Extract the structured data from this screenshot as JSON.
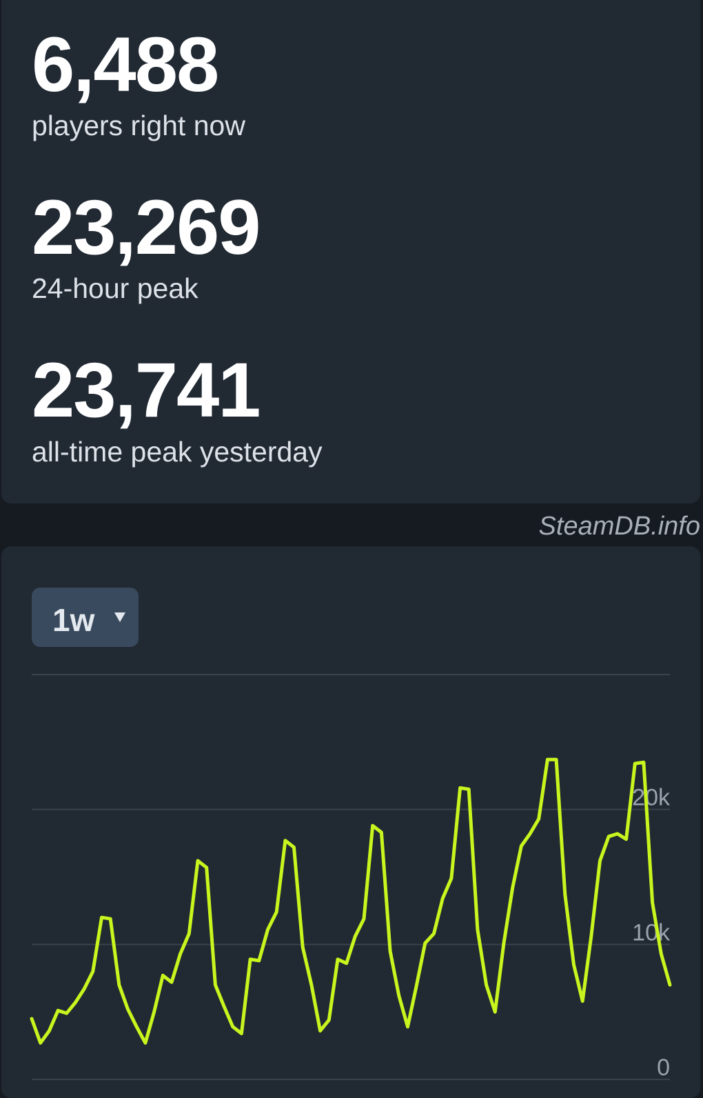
{
  "stats": [
    {
      "value": "6,488",
      "label": "players right now"
    },
    {
      "value": "23,269",
      "label": "24-hour peak"
    },
    {
      "value": "23,741",
      "label": "all-time peak yesterday"
    }
  ],
  "watermark": "SteamDB.info",
  "range_selector": "1w",
  "chart_data": {
    "type": "line",
    "color": "#c8f51e",
    "grid": true,
    "values": [
      4500,
      2700,
      3600,
      5100,
      4900,
      5700,
      6700,
      8000,
      12000,
      11900,
      7000,
      5200,
      3900,
      2700,
      5000,
      7700,
      7200,
      9300,
      10800,
      16200,
      15700,
      7000,
      5400,
      3900,
      3400,
      8900,
      8800,
      11100,
      12400,
      17700,
      17200,
      9800,
      7000,
      3600,
      4400,
      8900,
      8600,
      10600,
      11900,
      18800,
      18300,
      9500,
      6200,
      3900,
      6900,
      10100,
      10800,
      13400,
      14900,
      21600,
      21500,
      11100,
      7000,
      5000,
      10100,
      14200,
      17300,
      18200,
      19300,
      23700,
      23700,
      13700,
      8500,
      5800,
      10600,
      16200,
      18000,
      18200,
      17800,
      23400,
      23500,
      13100,
      9300,
      7000
    ],
    "ylim": [
      0,
      30000
    ],
    "yticks": [
      0,
      {
        "value": 10000,
        "label": "10k"
      },
      {
        "value": 20000,
        "label": "20k"
      }
    ]
  }
}
